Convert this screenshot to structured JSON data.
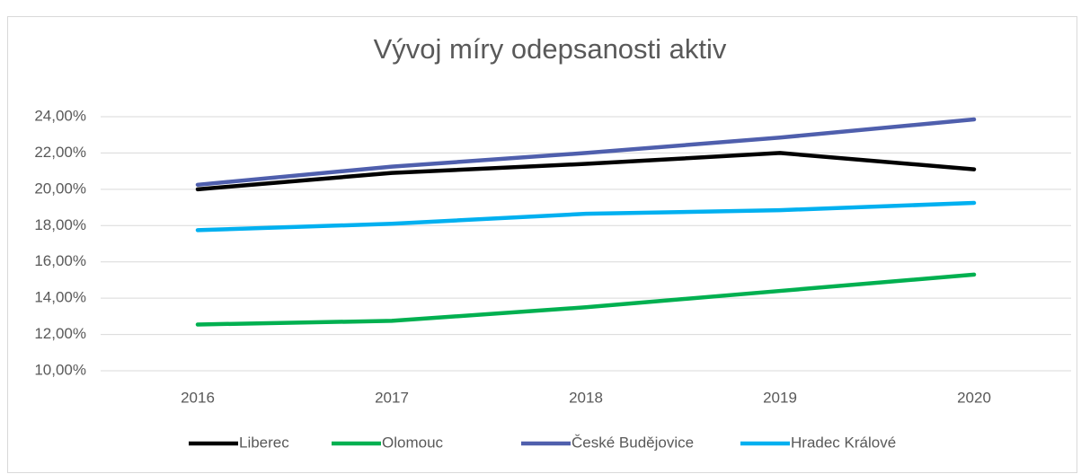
{
  "chart_data": {
    "type": "line",
    "title": "Vývoj míry odepsanosti aktiv",
    "categories": [
      "2016",
      "2017",
      "2018",
      "2019",
      "2020"
    ],
    "series": [
      {
        "name": "Liberec",
        "color": "#000000",
        "values": [
          20.0,
          20.9,
          21.4,
          22.0,
          21.1
        ]
      },
      {
        "name": "Olomouc",
        "color": "#00b050",
        "values": [
          12.55,
          12.75,
          13.5,
          14.4,
          15.3
        ]
      },
      {
        "name": "České Budějovice",
        "color": "#4f5fad",
        "values": [
          20.25,
          21.25,
          22.0,
          22.85,
          23.85
        ]
      },
      {
        "name": "Hradec Králové",
        "color": "#00b0f0",
        "values": [
          17.75,
          18.1,
          18.65,
          18.85,
          19.25
        ]
      }
    ],
    "ylim": [
      10,
      24
    ],
    "yticks": [
      {
        "value": 10,
        "label": "10,00%"
      },
      {
        "value": 12,
        "label": "12,00%"
      },
      {
        "value": 14,
        "label": "14,00%"
      },
      {
        "value": 16,
        "label": "16,00%"
      },
      {
        "value": 18,
        "label": "18,00%"
      },
      {
        "value": 20,
        "label": "20,00%"
      },
      {
        "value": 22,
        "label": "22,00%"
      },
      {
        "value": 24,
        "label": "24,00%"
      }
    ],
    "grid": true,
    "legend": "bottom"
  }
}
